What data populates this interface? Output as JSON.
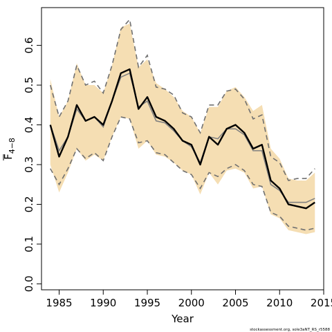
{
  "chart_data": {
    "type": "line",
    "xlabel": "Year",
    "ylabel_main": "F",
    "ylabel_sub": "4−8",
    "xlim": [
      1983,
      2015
    ],
    "ylim": [
      -0.015,
      0.695
    ],
    "x_ticks": [
      1985,
      1990,
      1995,
      2000,
      2005,
      2010,
      2015
    ],
    "y_ticks": [
      0.0,
      0.1,
      0.2,
      0.3,
      0.4,
      0.5,
      0.6
    ],
    "y_tick_labels": [
      "0.0",
      "0.1",
      "0.2",
      "0.3",
      "0.4",
      "0.5",
      "0.6"
    ],
    "grid": false,
    "colors": {
      "band": "#f5deb3",
      "estimate": "#000000",
      "previous_estimate": "#808080",
      "previous_bounds": "#707070"
    },
    "years": [
      1984,
      1985,
      1986,
      1987,
      1988,
      1989,
      1990,
      1991,
      1992,
      1993,
      1994,
      1995,
      1996,
      1997,
      1998,
      1999,
      2000,
      2001,
      2002,
      2003,
      2004,
      2005,
      2006,
      2007,
      2008,
      2009,
      2010,
      2011,
      2012,
      2013,
      2014
    ],
    "series": [
      {
        "role": "estimate",
        "values": [
          0.4,
          0.32,
          0.37,
          0.45,
          0.41,
          0.42,
          0.4,
          0.46,
          0.53,
          0.54,
          0.44,
          0.47,
          0.42,
          0.41,
          0.39,
          0.36,
          0.35,
          0.3,
          0.37,
          0.35,
          0.39,
          0.4,
          0.38,
          0.34,
          0.35,
          0.26,
          0.24,
          0.2,
          0.195,
          0.19,
          0.205
        ]
      },
      {
        "role": "previous_estimate",
        "values": [
          0.4,
          0.335,
          0.37,
          0.44,
          0.41,
          0.42,
          0.395,
          0.46,
          0.52,
          0.53,
          0.445,
          0.46,
          0.41,
          0.405,
          0.385,
          0.36,
          0.345,
          0.305,
          0.37,
          0.365,
          0.39,
          0.39,
          0.375,
          0.335,
          0.335,
          0.25,
          0.235,
          0.205,
          0.205,
          0.205,
          0.215
        ]
      },
      {
        "role": "confidence_band_upper",
        "values": [
          0.515,
          0.42,
          0.46,
          0.555,
          0.5,
          0.5,
          0.48,
          0.55,
          0.645,
          0.655,
          0.545,
          0.565,
          0.505,
          0.49,
          0.47,
          0.435,
          0.42,
          0.38,
          0.445,
          0.445,
          0.485,
          0.495,
          0.47,
          0.435,
          0.45,
          0.34,
          0.315,
          0.265,
          0.26,
          0.26,
          0.28
        ]
      },
      {
        "role": "confidence_band_lower",
        "values": [
          0.3,
          0.23,
          0.28,
          0.34,
          0.31,
          0.325,
          0.31,
          0.37,
          0.42,
          0.415,
          0.34,
          0.36,
          0.325,
          0.32,
          0.305,
          0.285,
          0.275,
          0.225,
          0.28,
          0.25,
          0.285,
          0.29,
          0.28,
          0.24,
          0.245,
          0.175,
          0.165,
          0.135,
          0.13,
          0.125,
          0.13
        ]
      },
      {
        "role": "previous_upper",
        "values": [
          0.5,
          0.42,
          0.46,
          0.55,
          0.5,
          0.51,
          0.48,
          0.55,
          0.64,
          0.665,
          0.545,
          0.575,
          0.495,
          0.49,
          0.475,
          0.43,
          0.42,
          0.38,
          0.45,
          0.45,
          0.485,
          0.49,
          0.465,
          0.415,
          0.425,
          0.32,
          0.305,
          0.26,
          0.265,
          0.265,
          0.29
        ]
      },
      {
        "role": "previous_lower",
        "values": [
          0.29,
          0.25,
          0.29,
          0.34,
          0.315,
          0.33,
          0.31,
          0.37,
          0.42,
          0.415,
          0.355,
          0.36,
          0.33,
          0.325,
          0.305,
          0.285,
          0.275,
          0.24,
          0.28,
          0.27,
          0.29,
          0.3,
          0.285,
          0.25,
          0.245,
          0.18,
          0.17,
          0.145,
          0.14,
          0.135,
          0.14
        ]
      }
    ]
  },
  "footer_note": "stockassessment.org, sole3aNT_RS_r5588"
}
